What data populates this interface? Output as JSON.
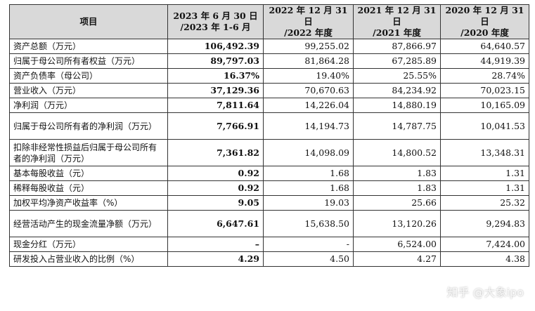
{
  "headers": [
    "项目",
    "2023 年 6 月 30 日\n/2023 年 1-6 月",
    "2022 年 12 月 31 日\n/2022 年度",
    "2021 年 12 月 31 日\n/2021 年度",
    "2020 年 12 月 31 日\n/2020 年度"
  ],
  "rows": [
    {
      "label": "资产总额（万元）",
      "values": [
        "106,492.39",
        "99,255.02",
        "87,866.97",
        "64,640.57"
      ]
    },
    {
      "label": "归属于母公司所有者权益（万元）",
      "values": [
        "89,797.03",
        "81,864.28",
        "67,285.89",
        "44,919.39"
      ]
    },
    {
      "label": "资产负债率（母公司）",
      "values": [
        "16.37%",
        "19.40%",
        "25.55%",
        "28.74%"
      ]
    },
    {
      "label": "营业收入（万元）",
      "values": [
        "37,129.36",
        "70,670.63",
        "84,234.92",
        "70,023.15"
      ]
    },
    {
      "label": "净利润（万元）",
      "values": [
        "7,811.64",
        "14,226.04",
        "14,880.19",
        "10,165.09"
      ]
    },
    {
      "label": "归属于母公司所有者的净利润（万元）",
      "values": [
        "7,766.91",
        "14,194.73",
        "14,787.75",
        "10,041.53"
      ]
    },
    {
      "label": "扣除非经常性损益后归属于母公司所有者的净利润（万元）",
      "values": [
        "7,361.82",
        "14,098.09",
        "14,800.52",
        "13,348.31"
      ]
    },
    {
      "label": "基本每股收益（元）",
      "values": [
        "0.92",
        "1.68",
        "1.83",
        "1.31"
      ]
    },
    {
      "label": "稀释每股收益（元）",
      "values": [
        "0.92",
        "1.68",
        "1.83",
        "1.31"
      ]
    },
    {
      "label": "加权平均净资产收益率（%）",
      "values": [
        "9.05",
        "19.03",
        "25.66",
        "25.32"
      ]
    },
    {
      "label": "经营活动产生的现金流量净额（万元）",
      "values": [
        "6,647.61",
        "15,638.50",
        "13,120.26",
        "9,294.83"
      ]
    },
    {
      "label": "现金分红（万元）",
      "values": [
        "–",
        "-",
        "6,524.00",
        "7,424.00"
      ]
    },
    {
      "label": "研发投入占营业收入的比例（%）",
      "values": [
        "4.29",
        "4.50",
        "4.27",
        "4.38"
      ]
    }
  ],
  "watermark": "知乎 @大象ipo"
}
